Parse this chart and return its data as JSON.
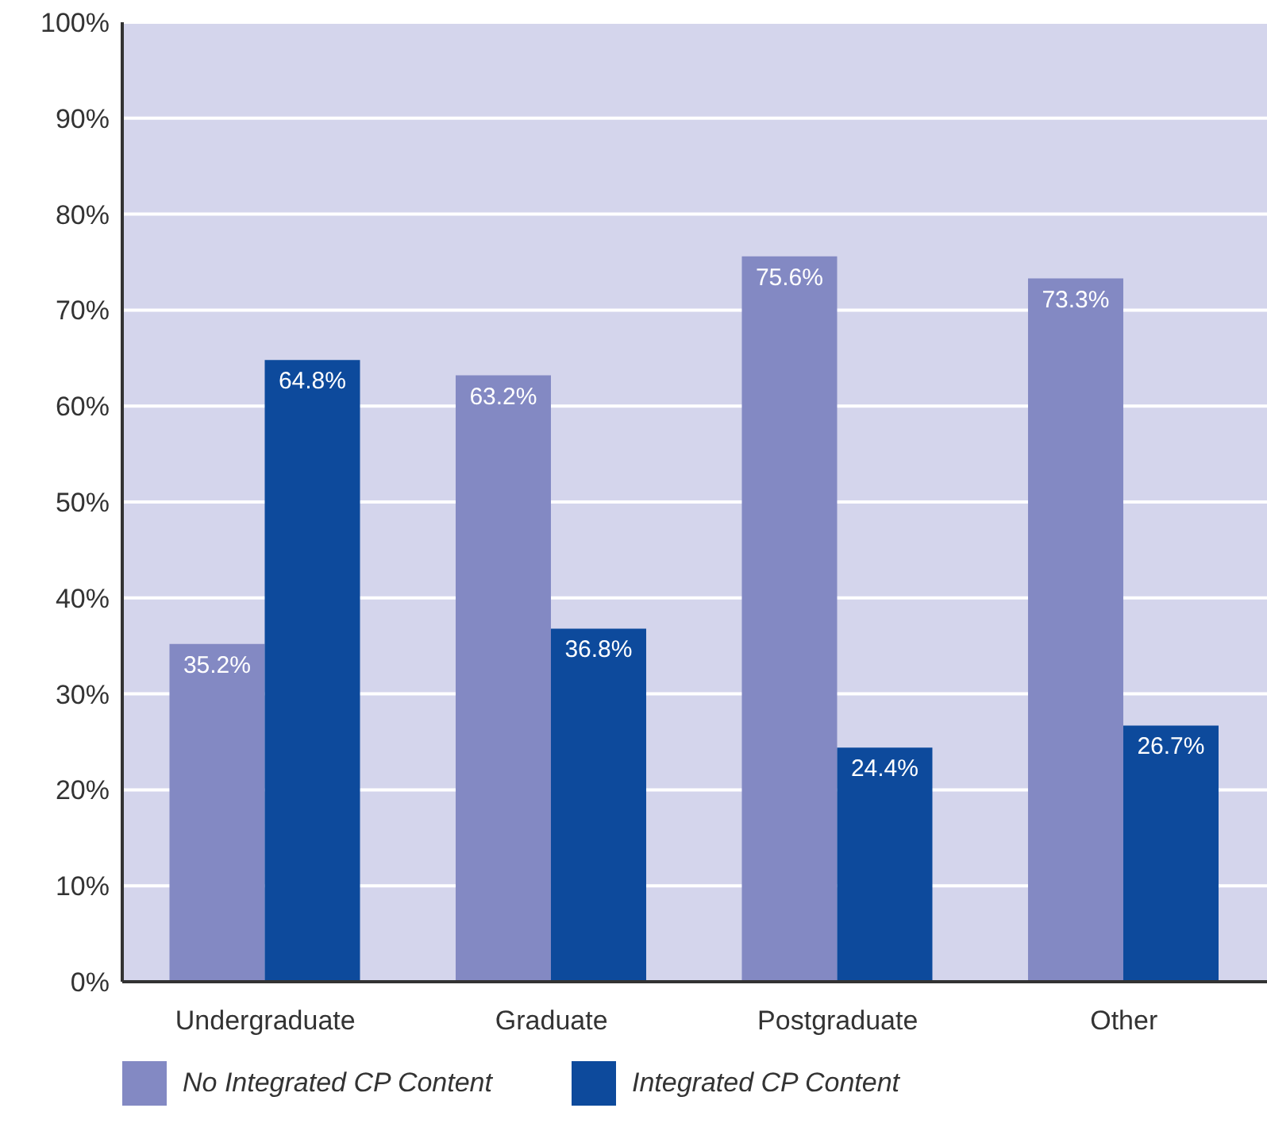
{
  "chart_data": {
    "type": "bar",
    "categories": [
      "Undergraduate",
      "Graduate",
      "Postgraduate",
      "Other"
    ],
    "series": [
      {
        "name": "No Integrated CP Content",
        "color": "#8389c3",
        "values": [
          35.2,
          63.2,
          75.6,
          73.3
        ]
      },
      {
        "name": "Integrated CP Content",
        "color": "#0d4a9c",
        "values": [
          64.8,
          36.8,
          24.4,
          26.7
        ]
      }
    ],
    "ylim": [
      0,
      100
    ],
    "yticks": [
      {
        "value": 0,
        "label": "0%"
      },
      {
        "value": 10,
        "label": "10%"
      },
      {
        "value": 20,
        "label": "20%"
      },
      {
        "value": 30,
        "label": "30%"
      },
      {
        "value": 40,
        "label": "40%"
      },
      {
        "value": 50,
        "label": "50%"
      },
      {
        "value": 60,
        "label": "60%"
      },
      {
        "value": 70,
        "label": "70%"
      },
      {
        "value": 80,
        "label": "80%"
      },
      {
        "value": 90,
        "label": "90%"
      },
      {
        "value": 100,
        "label": "100%"
      }
    ],
    "value_labels": [
      [
        "35.2%",
        "63.2%",
        "75.6%",
        "73.3%"
      ],
      [
        "64.8%",
        "36.8%",
        "24.4%",
        "26.7%"
      ]
    ],
    "grid": "y",
    "legend": "bottom left"
  }
}
